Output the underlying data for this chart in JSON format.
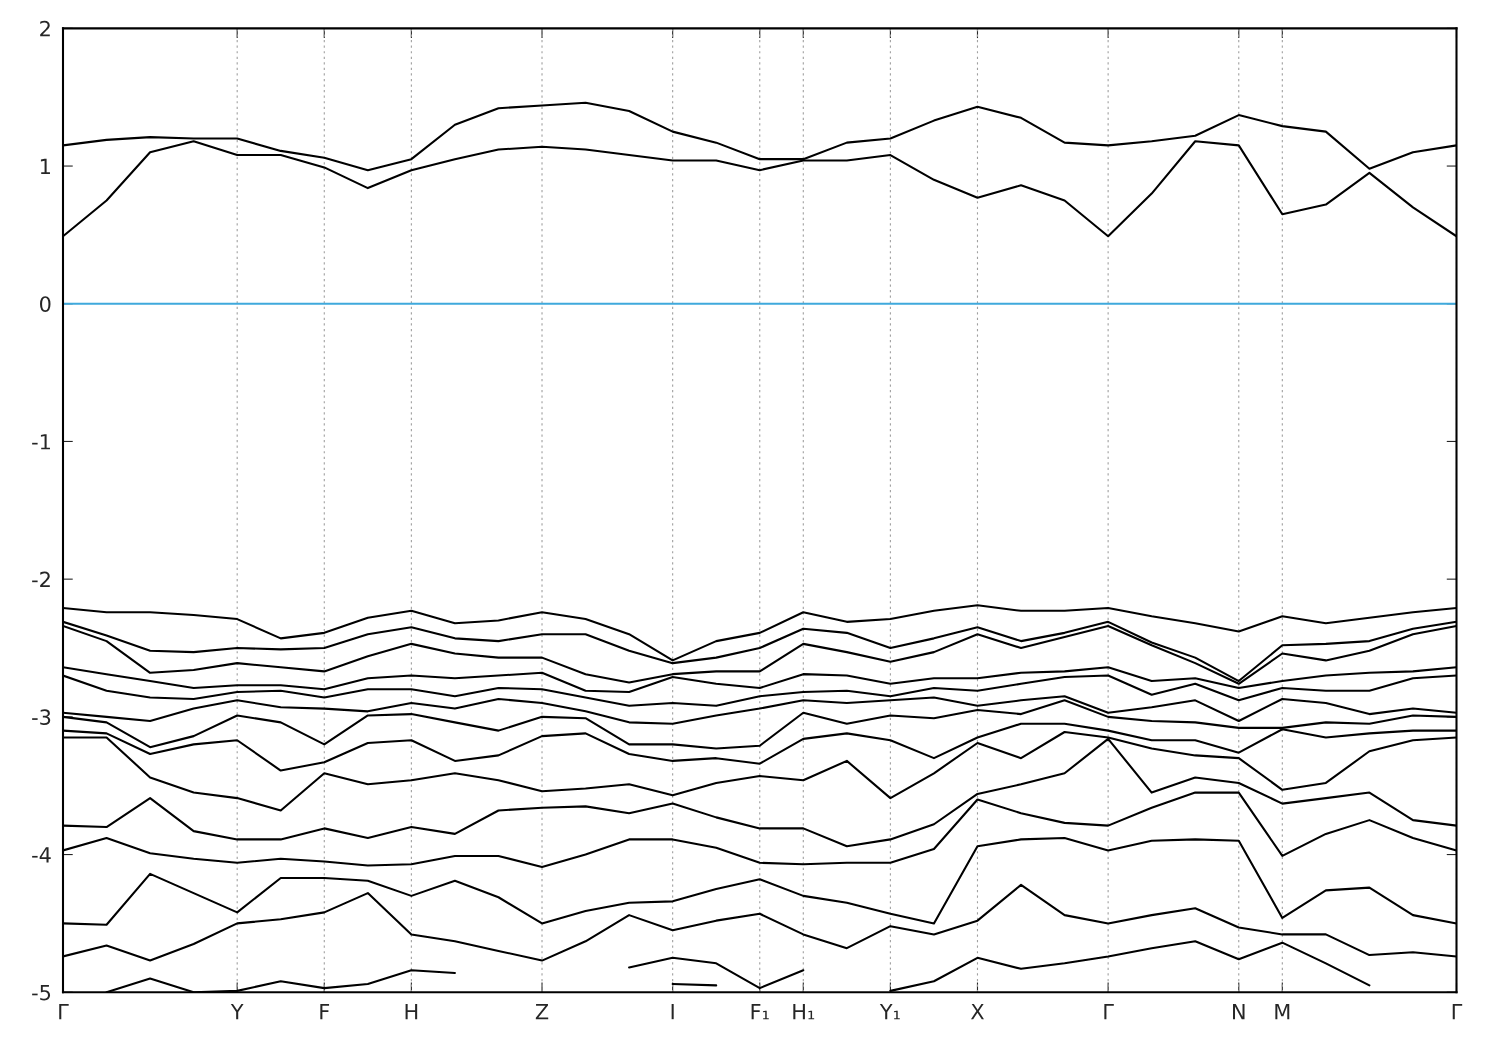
{
  "chart_data": {
    "type": "line",
    "categories": [
      "Γ",
      null,
      null,
      null,
      "Y",
      null,
      "F",
      null,
      "H",
      null,
      null,
      "Z",
      null,
      null,
      "I",
      null,
      "F₁",
      "H₁",
      null,
      "Y₁",
      null,
      "X",
      null,
      null,
      "Γ",
      null,
      null,
      "N",
      "M",
      null,
      null,
      null,
      "Γ"
    ],
    "series": [
      {
        "color": "#000000",
        "values": [
          1.15,
          1.19,
          1.21,
          1.2,
          1.2,
          1.11,
          1.06,
          0.97,
          1.05,
          1.3,
          1.42,
          1.44,
          1.46,
          1.4,
          1.25,
          1.17,
          1.05,
          1.05,
          1.17,
          1.2,
          1.33,
          1.43,
          1.35,
          1.17,
          1.15,
          1.18,
          1.22,
          1.37,
          1.29,
          1.25,
          0.98,
          1.1,
          1.15
        ]
      },
      {
        "color": "#000000",
        "values": [
          0.49,
          0.75,
          1.1,
          1.18,
          1.08,
          1.08,
          0.99,
          0.84,
          0.97,
          1.05,
          1.12,
          1.14,
          1.12,
          1.08,
          1.04,
          1.04,
          0.97,
          1.04,
          1.04,
          1.08,
          0.9,
          0.77,
          0.86,
          0.75,
          0.49,
          0.8,
          1.18,
          1.15,
          0.65,
          0.72,
          0.95,
          0.7,
          0.49
        ]
      },
      {
        "color": "#000000",
        "values": [
          -2.21,
          -2.24,
          -2.24,
          -2.26,
          -2.29,
          -2.43,
          -2.39,
          -2.28,
          -2.23,
          -2.32,
          -2.3,
          -2.24,
          -2.29,
          -2.4,
          -2.59,
          -2.45,
          -2.39,
          -2.24,
          -2.31,
          -2.29,
          -2.23,
          -2.19,
          -2.23,
          -2.23,
          -2.21,
          -2.27,
          -2.32,
          -2.38,
          -2.27,
          -2.32,
          -2.28,
          -2.24,
          -2.21
        ]
      },
      {
        "color": "#000000",
        "values": [
          -2.31,
          -2.41,
          -2.52,
          -2.53,
          -2.5,
          -2.51,
          -2.5,
          -2.4,
          -2.35,
          -2.43,
          -2.45,
          -2.4,
          -2.4,
          -2.52,
          -2.61,
          -2.57,
          -2.5,
          -2.36,
          -2.39,
          -2.5,
          -2.43,
          -2.35,
          -2.45,
          -2.39,
          -2.31,
          -2.46,
          -2.57,
          -2.74,
          -2.48,
          -2.47,
          -2.45,
          -2.36,
          -2.31
        ]
      },
      {
        "color": "#000000",
        "values": [
          -2.34,
          -2.45,
          -2.68,
          -2.66,
          -2.61,
          -2.64,
          -2.67,
          -2.56,
          -2.47,
          -2.54,
          -2.57,
          -2.57,
          -2.69,
          -2.75,
          -2.69,
          -2.67,
          -2.67,
          -2.47,
          -2.53,
          -2.6,
          -2.53,
          -2.4,
          -2.5,
          -2.42,
          -2.34,
          -2.48,
          -2.61,
          -2.76,
          -2.54,
          -2.59,
          -2.52,
          -2.4,
          -2.34
        ]
      },
      {
        "color": "#000000",
        "values": [
          -2.64,
          -2.69,
          -2.74,
          -2.79,
          -2.77,
          -2.77,
          -2.8,
          -2.72,
          -2.7,
          -2.72,
          -2.7,
          -2.68,
          -2.81,
          -2.82,
          -2.71,
          -2.76,
          -2.79,
          -2.69,
          -2.7,
          -2.76,
          -2.72,
          -2.72,
          -2.68,
          -2.67,
          -2.64,
          -2.74,
          -2.72,
          -2.79,
          -2.74,
          -2.7,
          -2.68,
          -2.67,
          -2.64
        ]
      },
      {
        "color": "#000000",
        "values": [
          -2.7,
          -2.81,
          -2.86,
          -2.87,
          -2.82,
          -2.81,
          -2.86,
          -2.8,
          -2.8,
          -2.85,
          -2.79,
          -2.8,
          -2.86,
          -2.92,
          -2.9,
          -2.92,
          -2.85,
          -2.82,
          -2.81,
          -2.85,
          -2.79,
          -2.81,
          -2.76,
          -2.71,
          -2.7,
          -2.84,
          -2.76,
          -2.88,
          -2.79,
          -2.81,
          -2.81,
          -2.72,
          -2.7
        ]
      },
      {
        "color": "#000000",
        "values": [
          -2.97,
          -3.0,
          -3.03,
          -2.94,
          -2.88,
          -2.93,
          -2.94,
          -2.96,
          -2.9,
          -2.94,
          -2.87,
          -2.9,
          -2.96,
          -3.04,
          -3.05,
          -2.99,
          -2.94,
          -2.88,
          -2.9,
          -2.88,
          -2.86,
          -2.92,
          -2.88,
          -2.85,
          -2.97,
          -2.93,
          -2.88,
          -3.03,
          -2.87,
          -2.9,
          -2.98,
          -2.94,
          -2.97
        ]
      },
      {
        "color": "#000000",
        "values": [
          -3.0,
          -3.04,
          -3.22,
          -3.14,
          -2.99,
          -3.04,
          -3.2,
          -2.99,
          -2.98,
          -3.04,
          -3.1,
          -3.0,
          -3.01,
          -3.2,
          -3.2,
          -3.23,
          -3.21,
          -2.97,
          -3.05,
          -2.99,
          -3.01,
          -2.95,
          -2.98,
          -2.88,
          -3.0,
          -3.03,
          -3.04,
          -3.08,
          -3.08,
          -3.04,
          -3.05,
          -2.99,
          -3.0
        ]
      },
      {
        "color": "#000000",
        "values": [
          -3.1,
          -3.12,
          -3.27,
          -3.2,
          -3.17,
          -3.39,
          -3.33,
          -3.19,
          -3.17,
          -3.32,
          -3.28,
          -3.14,
          -3.12,
          -3.27,
          -3.32,
          -3.3,
          -3.34,
          -3.16,
          -3.12,
          -3.17,
          -3.3,
          -3.15,
          -3.05,
          -3.05,
          -3.1,
          -3.17,
          -3.17,
          -3.26,
          -3.09,
          -3.15,
          -3.12,
          -3.1,
          -3.1
        ]
      },
      {
        "color": "#000000",
        "values": [
          -3.15,
          -3.15,
          -3.44,
          -3.55,
          -3.59,
          -3.68,
          -3.41,
          -3.49,
          -3.46,
          -3.41,
          -3.46,
          -3.54,
          -3.52,
          -3.49,
          -3.57,
          -3.48,
          -3.43,
          -3.46,
          -3.32,
          -3.59,
          -3.41,
          -3.19,
          -3.3,
          -3.11,
          -3.15,
          -3.23,
          -3.28,
          -3.3,
          -3.53,
          -3.48,
          -3.25,
          -3.17,
          -3.15
        ]
      },
      {
        "color": "#000000",
        "values": [
          -3.79,
          -3.8,
          -3.59,
          -3.83,
          -3.89,
          -3.89,
          -3.81,
          -3.88,
          -3.8,
          -3.85,
          -3.68,
          -3.66,
          -3.65,
          -3.7,
          -3.63,
          -3.73,
          -3.81,
          -3.81,
          -3.94,
          -3.89,
          -3.78,
          -3.56,
          -3.49,
          -3.41,
          -3.16,
          -3.55,
          -3.44,
          -3.48,
          -3.63,
          -3.59,
          -3.55,
          -3.75,
          -3.79
        ]
      },
      {
        "color": "#000000",
        "values": [
          -3.97,
          -3.88,
          -3.99,
          -4.03,
          -4.06,
          -4.03,
          -4.05,
          -4.08,
          -4.07,
          -4.01,
          -4.01,
          -4.09,
          -4.0,
          -3.89,
          -3.89,
          -3.95,
          -4.06,
          -4.07,
          -4.06,
          -4.06,
          -3.96,
          -3.6,
          -3.7,
          -3.77,
          -3.79,
          -3.66,
          -3.55,
          -3.55,
          -4.01,
          -3.85,
          -3.75,
          -3.88,
          -3.97
        ]
      },
      {
        "color": "#000000",
        "values": [
          -4.5,
          -4.51,
          -4.14,
          -4.28,
          -4.42,
          -4.17,
          -4.17,
          -4.19,
          -4.3,
          -4.19,
          -4.31,
          -4.5,
          -4.41,
          -4.35,
          -4.34,
          -4.25,
          -4.18,
          -4.3,
          -4.35,
          -4.43,
          -4.5,
          -3.94,
          -3.89,
          -3.88,
          -3.97,
          -3.9,
          -3.89,
          -3.9,
          -4.46,
          -4.26,
          -4.24,
          -4.44,
          -4.5
        ]
      },
      {
        "color": "#000000",
        "values": [
          -4.74,
          -4.66,
          -4.77,
          -4.65,
          -4.5,
          -4.47,
          -4.42,
          -4.28,
          -4.58,
          -4.63,
          -4.7,
          -4.77,
          -4.63,
          -4.44,
          -4.55,
          -4.48,
          -4.43,
          -4.58,
          -4.68,
          -4.52,
          -4.58,
          -4.48,
          -4.22,
          -4.44,
          -4.5,
          -4.44,
          -4.39,
          -4.53,
          -4.58,
          -4.58,
          -4.73,
          -4.71,
          -4.74
        ]
      },
      {
        "color": "#000000",
        "values": [
          null,
          -5.0,
          -4.9,
          -5.0,
          -4.99,
          -4.92,
          -4.97,
          -4.94,
          -4.84,
          -4.86,
          null,
          null,
          null,
          -4.82,
          -4.75,
          -4.79,
          -4.97,
          -4.84,
          null,
          -4.99,
          -4.92,
          -4.75,
          -4.83,
          -4.79,
          -4.74,
          -4.68,
          -4.63,
          -4.76,
          -4.64,
          -4.79,
          -4.95,
          null,
          null
        ]
      },
      {
        "color": "#000000",
        "values": [
          null,
          null,
          null,
          null,
          null,
          null,
          null,
          null,
          null,
          null,
          null,
          null,
          null,
          null,
          -4.94,
          -4.95,
          null,
          null,
          null,
          null,
          null,
          null,
          null,
          null,
          null,
          null,
          null,
          null,
          null,
          null,
          null,
          null,
          null
        ]
      }
    ],
    "ylim": [
      -5,
      2
    ],
    "yticks": [
      -5,
      -4,
      -3,
      -2,
      -1,
      0,
      1,
      2
    ],
    "grid": "x",
    "line_style": "solid",
    "ref_lines": [
      {
        "axis": "y",
        "value": 0,
        "color": "#3fa9dc"
      }
    ]
  }
}
